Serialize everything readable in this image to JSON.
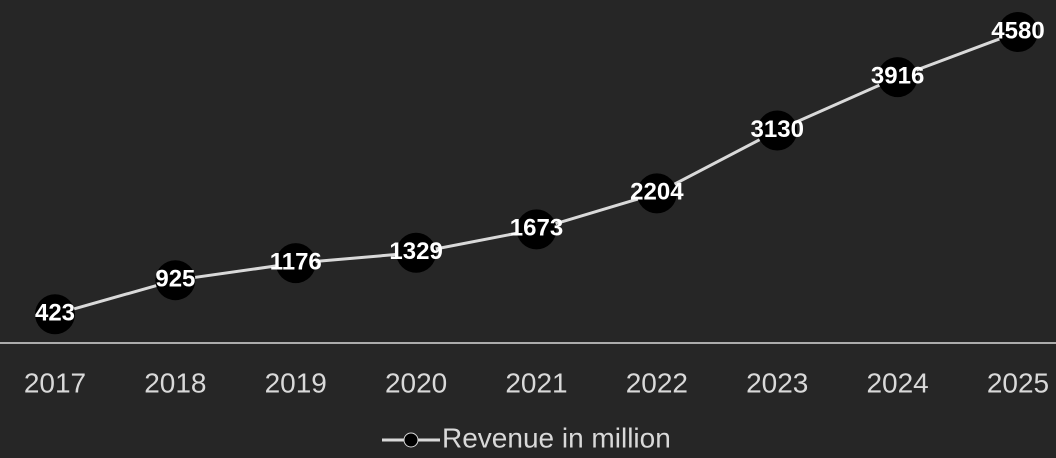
{
  "chart_data": {
    "type": "line",
    "categories": [
      "2017",
      "2018",
      "2019",
      "2020",
      "2021",
      "2022",
      "2023",
      "2024",
      "2025"
    ],
    "series": [
      {
        "name": "Revenue in million",
        "color": "#d9d9d9",
        "marker_color": "#000000",
        "values": [
          423,
          925,
          1176,
          1329,
          1673,
          2204,
          3130,
          3916,
          4580
        ]
      }
    ],
    "data_labels": true,
    "legend": "bottom"
  }
}
